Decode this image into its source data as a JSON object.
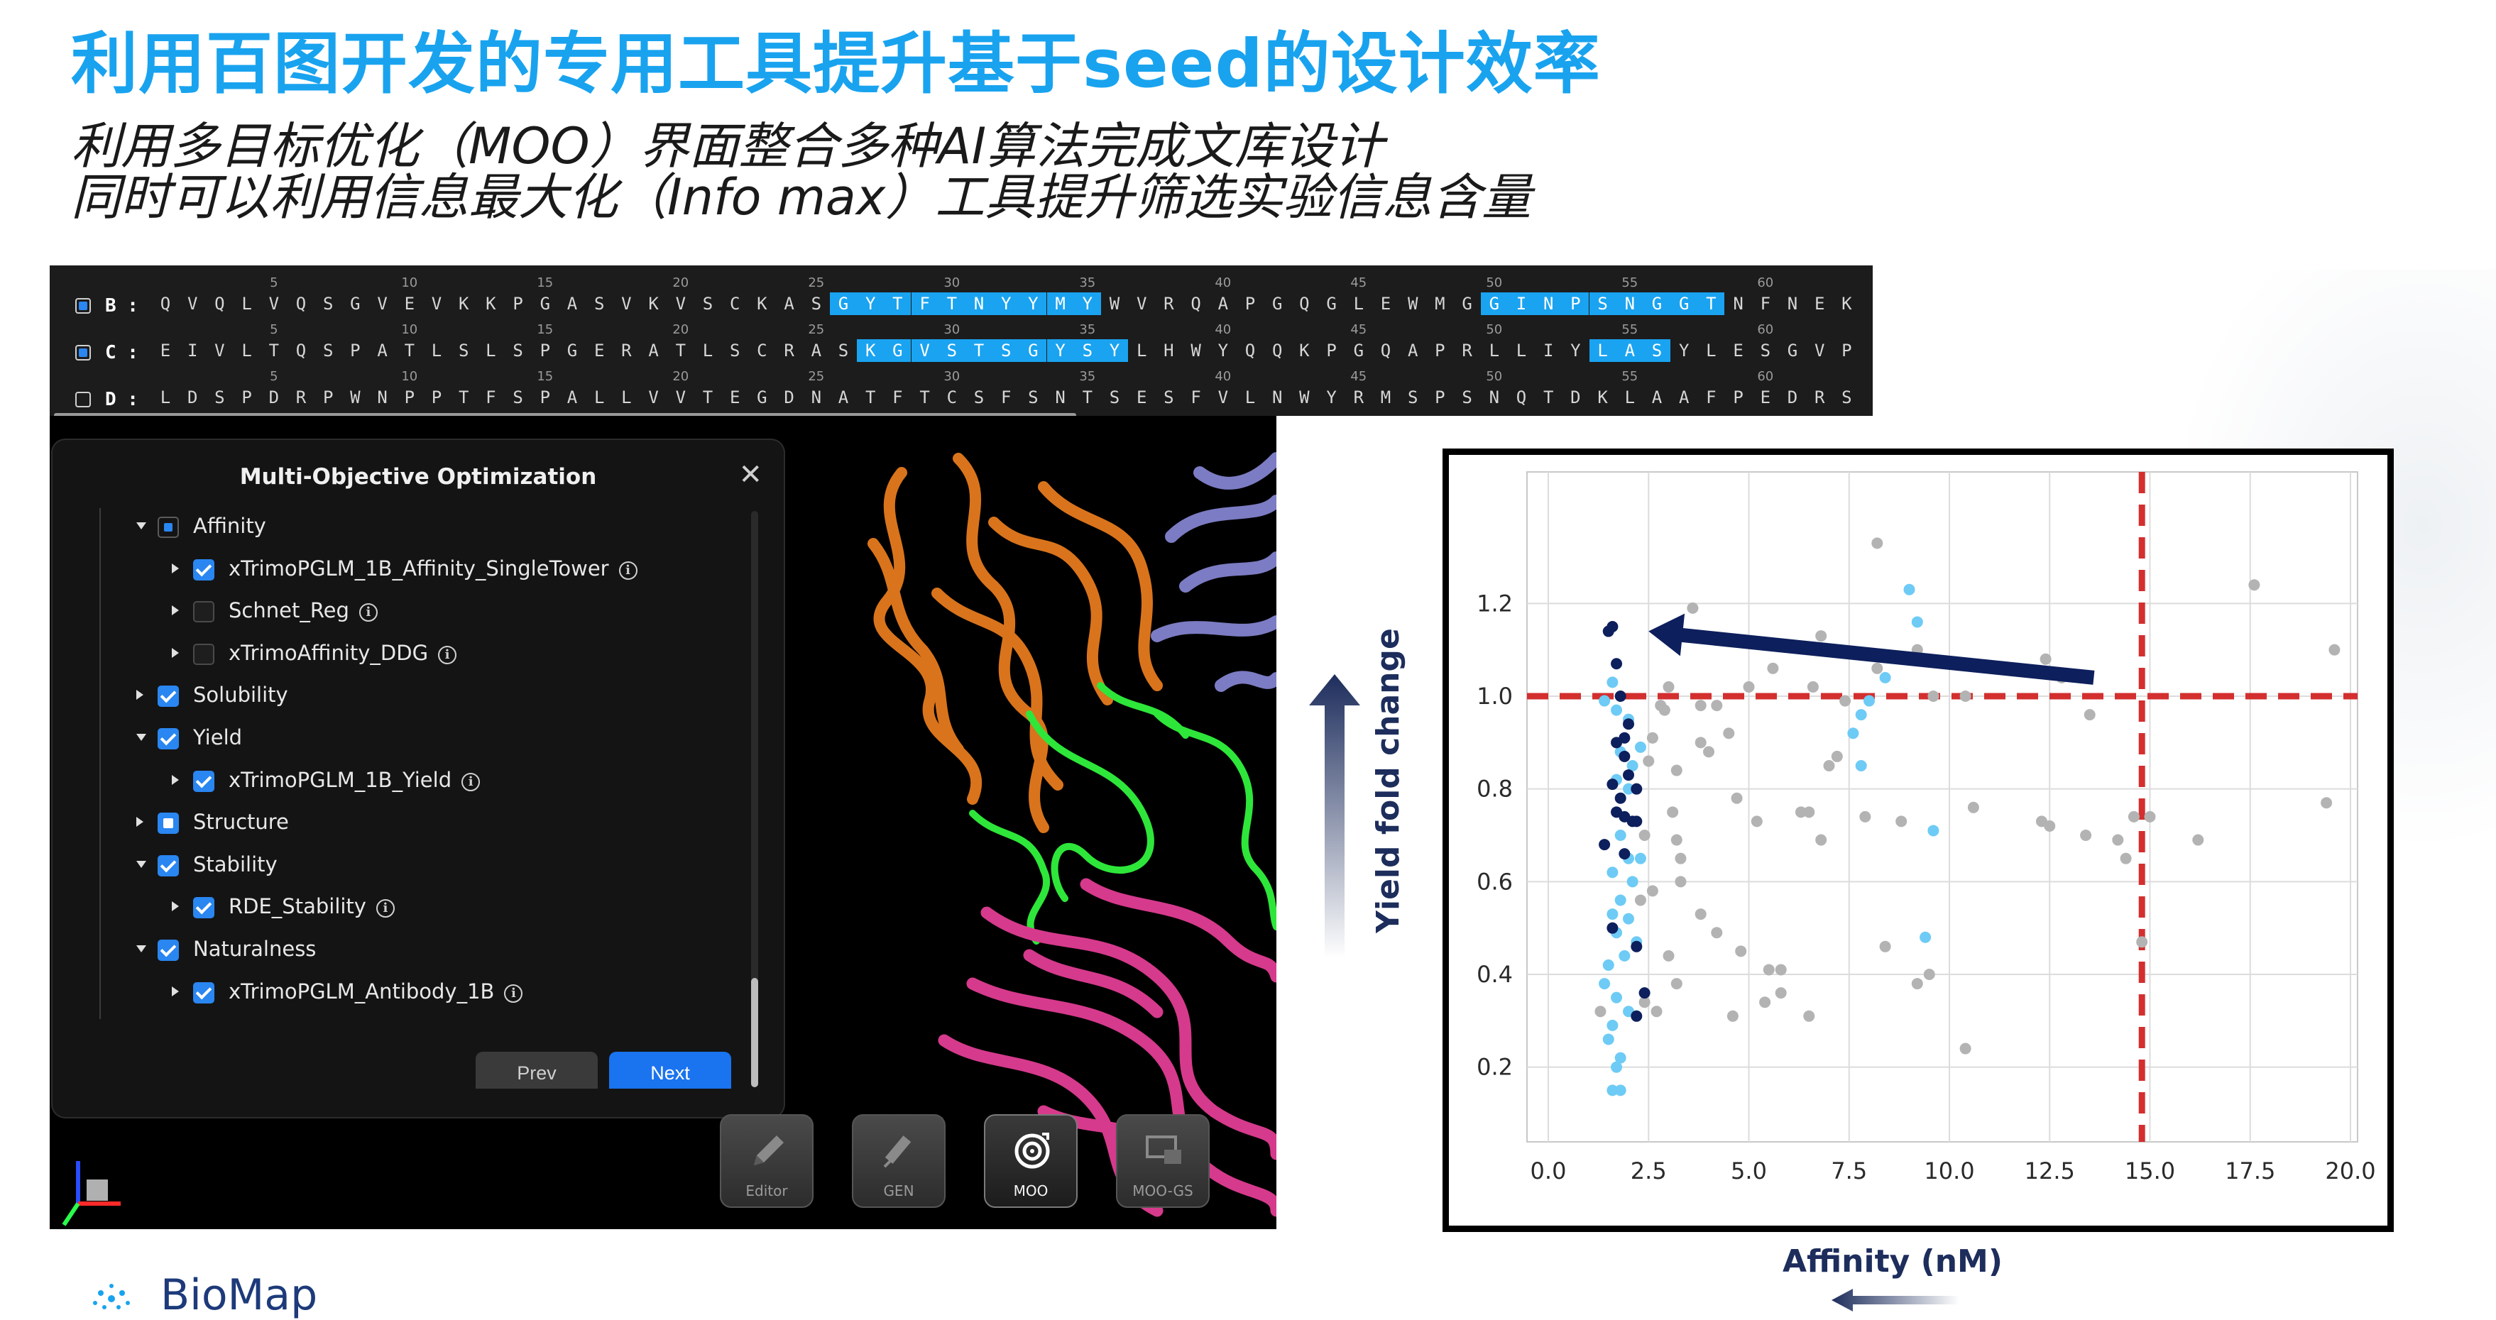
{
  "slide": {
    "title": "利用百图开发的专用工具提升基于seed的设计效率",
    "subtitle_1": "利用多目标优化（MOO）界面整合多种AI算法完成文库设计",
    "subtitle_2": "同时可以利用信息最大化（Info max）工具提升筛选实验信息含量",
    "logo_text": "BioMap"
  },
  "sequence_panel": {
    "tick_labels": [
      "5",
      "10",
      "15",
      "20",
      "25",
      "30",
      "35",
      "40",
      "45",
      "50",
      "55",
      "60"
    ],
    "rows": [
      {
        "label": "B :",
        "checked": true,
        "residues": "QVQLVQSGVEVKKPGASVKVSCKASGYTFTNYYMYWVRQAPGQGLEWMGGINPSNGGTNFNEK",
        "highlights": [
          [
            25,
            34
          ],
          [
            49,
            57
          ]
        ]
      },
      {
        "label": "C :",
        "checked": true,
        "residues": "EIVLTQSPATLSLSPGERATLSCRASKGVSTSGYSYLHWYQQKPGQAPRLLIYLASYLESGVP",
        "highlights": [
          [
            26,
            35
          ],
          [
            53,
            55
          ]
        ]
      },
      {
        "label": "D :",
        "checked": false,
        "residues": "LDSPDRPWNPPTFSPALLVVTEGDNATFTCSFSNTSESFVLNWYRMSPSNQTDKLAAFPEDRS",
        "highlights": []
      }
    ]
  },
  "moo_dialog": {
    "title": "Multi-Objective Optimization",
    "close": "✕",
    "items": [
      {
        "level": 0,
        "expanded": true,
        "state": "partial-dark",
        "label": "Affinity",
        "info": false
      },
      {
        "level": 1,
        "expanded": false,
        "state": "checked",
        "label": "xTrimoPGLM_1B_Affinity_SingleTower",
        "info": true
      },
      {
        "level": 1,
        "expanded": false,
        "state": "empty",
        "label": "Schnet_Reg",
        "info": true
      },
      {
        "level": 1,
        "expanded": false,
        "state": "empty",
        "label": "xTrimoAffinity_DDG",
        "info": true
      },
      {
        "level": 0,
        "expanded": false,
        "state": "checked",
        "label": "Solubility",
        "info": false
      },
      {
        "level": 0,
        "expanded": true,
        "state": "checked",
        "label": "Yield",
        "info": false
      },
      {
        "level": 1,
        "expanded": false,
        "state": "checked",
        "label": "xTrimoPGLM_1B_Yield",
        "info": true
      },
      {
        "level": 0,
        "expanded": false,
        "state": "partial",
        "label": "Structure",
        "info": false
      },
      {
        "level": 0,
        "expanded": true,
        "state": "checked",
        "label": "Stability",
        "info": false
      },
      {
        "level": 1,
        "expanded": false,
        "state": "checked",
        "label": "RDE_Stability",
        "info": true
      },
      {
        "level": 0,
        "expanded": true,
        "state": "checked",
        "label": "Naturalness",
        "info": false
      },
      {
        "level": 1,
        "expanded": false,
        "state": "checked",
        "label": "xTrimoPGLM_Antibody_1B",
        "info": true
      }
    ],
    "prev_label": "Prev",
    "next_label": "Next"
  },
  "toolbar": {
    "editor_label": "Editor",
    "gen_label": "GEN",
    "moo_label": "MOO",
    "moogs_label": "MOO-GS"
  },
  "chart_data": {
    "type": "scatter",
    "xlabel": "Affinity (nM)",
    "ylabel": "Yield fold change",
    "xlim": [
      0,
      20.5
    ],
    "ylim": [
      0.08,
      1.38
    ],
    "xticks": [
      "0.0",
      "2.5",
      "5.0",
      "7.5",
      "10.0",
      "12.5",
      "15.0",
      "17.5",
      "20.0"
    ],
    "yticks": [
      "0.2",
      "0.4",
      "0.6",
      "0.8",
      "1.0",
      "1.2"
    ],
    "grid": true,
    "reference_lines": {
      "x": 14.8,
      "y": 1.0,
      "color": "#d32f2f",
      "style": "dashed"
    },
    "arrow": {
      "from": [
        13.6,
        1.04
      ],
      "to": [
        2.5,
        1.14
      ],
      "color": "#0d1f5c"
    },
    "series": [
      {
        "color": "#0d1f5c",
        "points": [
          [
            1.5,
            1.14
          ],
          [
            1.6,
            1.15
          ],
          [
            1.7,
            1.07
          ],
          [
            1.8,
            1.0
          ],
          [
            2.0,
            0.94
          ],
          [
            1.9,
            0.91
          ],
          [
            1.7,
            0.9
          ],
          [
            1.9,
            0.87
          ],
          [
            2.0,
            0.83
          ],
          [
            1.6,
            0.81
          ],
          [
            2.2,
            0.8
          ],
          [
            1.8,
            0.78
          ],
          [
            1.7,
            0.75
          ],
          [
            1.9,
            0.74
          ],
          [
            2.1,
            0.73
          ],
          [
            2.2,
            0.73
          ],
          [
            1.4,
            0.68
          ],
          [
            1.9,
            0.66
          ],
          [
            1.6,
            0.5
          ],
          [
            2.2,
            0.46
          ],
          [
            2.4,
            0.36
          ],
          [
            2.2,
            0.31
          ]
        ]
      },
      {
        "color": "#6ecbf5",
        "points": [
          [
            1.4,
            0.99
          ],
          [
            1.6,
            1.03
          ],
          [
            1.7,
            0.97
          ],
          [
            2.0,
            0.95
          ],
          [
            2.3,
            0.89
          ],
          [
            1.8,
            0.88
          ],
          [
            2.1,
            0.85
          ],
          [
            1.7,
            0.82
          ],
          [
            2.0,
            0.8
          ],
          [
            1.8,
            0.7
          ],
          [
            2.0,
            0.65
          ],
          [
            2.3,
            0.65
          ],
          [
            1.6,
            0.62
          ],
          [
            2.1,
            0.6
          ],
          [
            1.8,
            0.56
          ],
          [
            1.6,
            0.53
          ],
          [
            2.0,
            0.52
          ],
          [
            1.7,
            0.49
          ],
          [
            2.2,
            0.47
          ],
          [
            1.5,
            0.42
          ],
          [
            1.9,
            0.44
          ],
          [
            1.4,
            0.38
          ],
          [
            1.7,
            0.35
          ],
          [
            2.0,
            0.32
          ],
          [
            1.6,
            0.29
          ],
          [
            1.5,
            0.26
          ],
          [
            1.8,
            0.22
          ],
          [
            1.7,
            0.2
          ],
          [
            1.6,
            0.15
          ],
          [
            1.8,
            0.15
          ],
          [
            8.4,
            1.04
          ],
          [
            8.0,
            0.99
          ],
          [
            7.8,
            0.96
          ],
          [
            7.6,
            0.92
          ],
          [
            9.0,
            1.23
          ],
          [
            9.2,
            1.16
          ],
          [
            7.8,
            0.85
          ],
          [
            9.6,
            0.71
          ],
          [
            9.4,
            0.48
          ]
        ]
      },
      {
        "color": "#b3b3b3",
        "points": [
          [
            3.6,
            1.19
          ],
          [
            4.5,
            0.92
          ],
          [
            3.8,
            0.98
          ],
          [
            4.2,
            0.98
          ],
          [
            3.0,
            1.02
          ],
          [
            2.9,
            0.97
          ],
          [
            2.8,
            0.98
          ],
          [
            2.6,
            0.91
          ],
          [
            2.5,
            0.86
          ],
          [
            3.2,
            0.84
          ],
          [
            3.8,
            0.9
          ],
          [
            4.0,
            0.88
          ],
          [
            4.7,
            0.78
          ],
          [
            5.6,
            1.06
          ],
          [
            5.0,
            1.02
          ],
          [
            6.6,
            1.02
          ],
          [
            6.8,
            1.13
          ],
          [
            7.0,
            0.85
          ],
          [
            7.2,
            0.87
          ],
          [
            7.4,
            0.99
          ],
          [
            8.2,
            1.33
          ],
          [
            8.2,
            1.06
          ],
          [
            9.2,
            1.1
          ],
          [
            9.6,
            1.0
          ],
          [
            10.4,
            1.0
          ],
          [
            12.4,
            1.08
          ],
          [
            12.8,
            1.04
          ],
          [
            13.5,
            0.96
          ],
          [
            3.1,
            0.75
          ],
          [
            3.2,
            0.69
          ],
          [
            3.3,
            0.65
          ],
          [
            5.2,
            0.73
          ],
          [
            6.3,
            0.75
          ],
          [
            6.5,
            0.75
          ],
          [
            6.8,
            0.69
          ],
          [
            7.9,
            0.74
          ],
          [
            8.8,
            0.73
          ],
          [
            10.6,
            0.76
          ],
          [
            12.3,
            0.73
          ],
          [
            12.5,
            0.72
          ],
          [
            13.4,
            0.7
          ],
          [
            14.2,
            0.69
          ],
          [
            14.6,
            0.74
          ],
          [
            14.4,
            0.65
          ],
          [
            15.0,
            0.74
          ],
          [
            16.2,
            0.69
          ],
          [
            19.4,
            0.77
          ],
          [
            19.6,
            1.1
          ],
          [
            17.6,
            1.24
          ],
          [
            2.4,
            0.7
          ],
          [
            2.6,
            0.58
          ],
          [
            3.3,
            0.6
          ],
          [
            4.2,
            0.49
          ],
          [
            3.8,
            0.53
          ],
          [
            5.5,
            0.41
          ],
          [
            5.8,
            0.41
          ],
          [
            6.5,
            0.31
          ],
          [
            5.4,
            0.34
          ],
          [
            5.8,
            0.36
          ],
          [
            4.8,
            0.45
          ],
          [
            3.0,
            0.44
          ],
          [
            3.2,
            0.38
          ],
          [
            2.4,
            0.34
          ],
          [
            2.7,
            0.32
          ],
          [
            1.3,
            0.32
          ],
          [
            4.6,
            0.31
          ],
          [
            8.4,
            0.46
          ],
          [
            9.5,
            0.4
          ],
          [
            9.2,
            0.38
          ],
          [
            10.4,
            0.24
          ],
          [
            14.8,
            0.47
          ],
          [
            2.3,
            0.56
          ]
        ]
      }
    ]
  }
}
